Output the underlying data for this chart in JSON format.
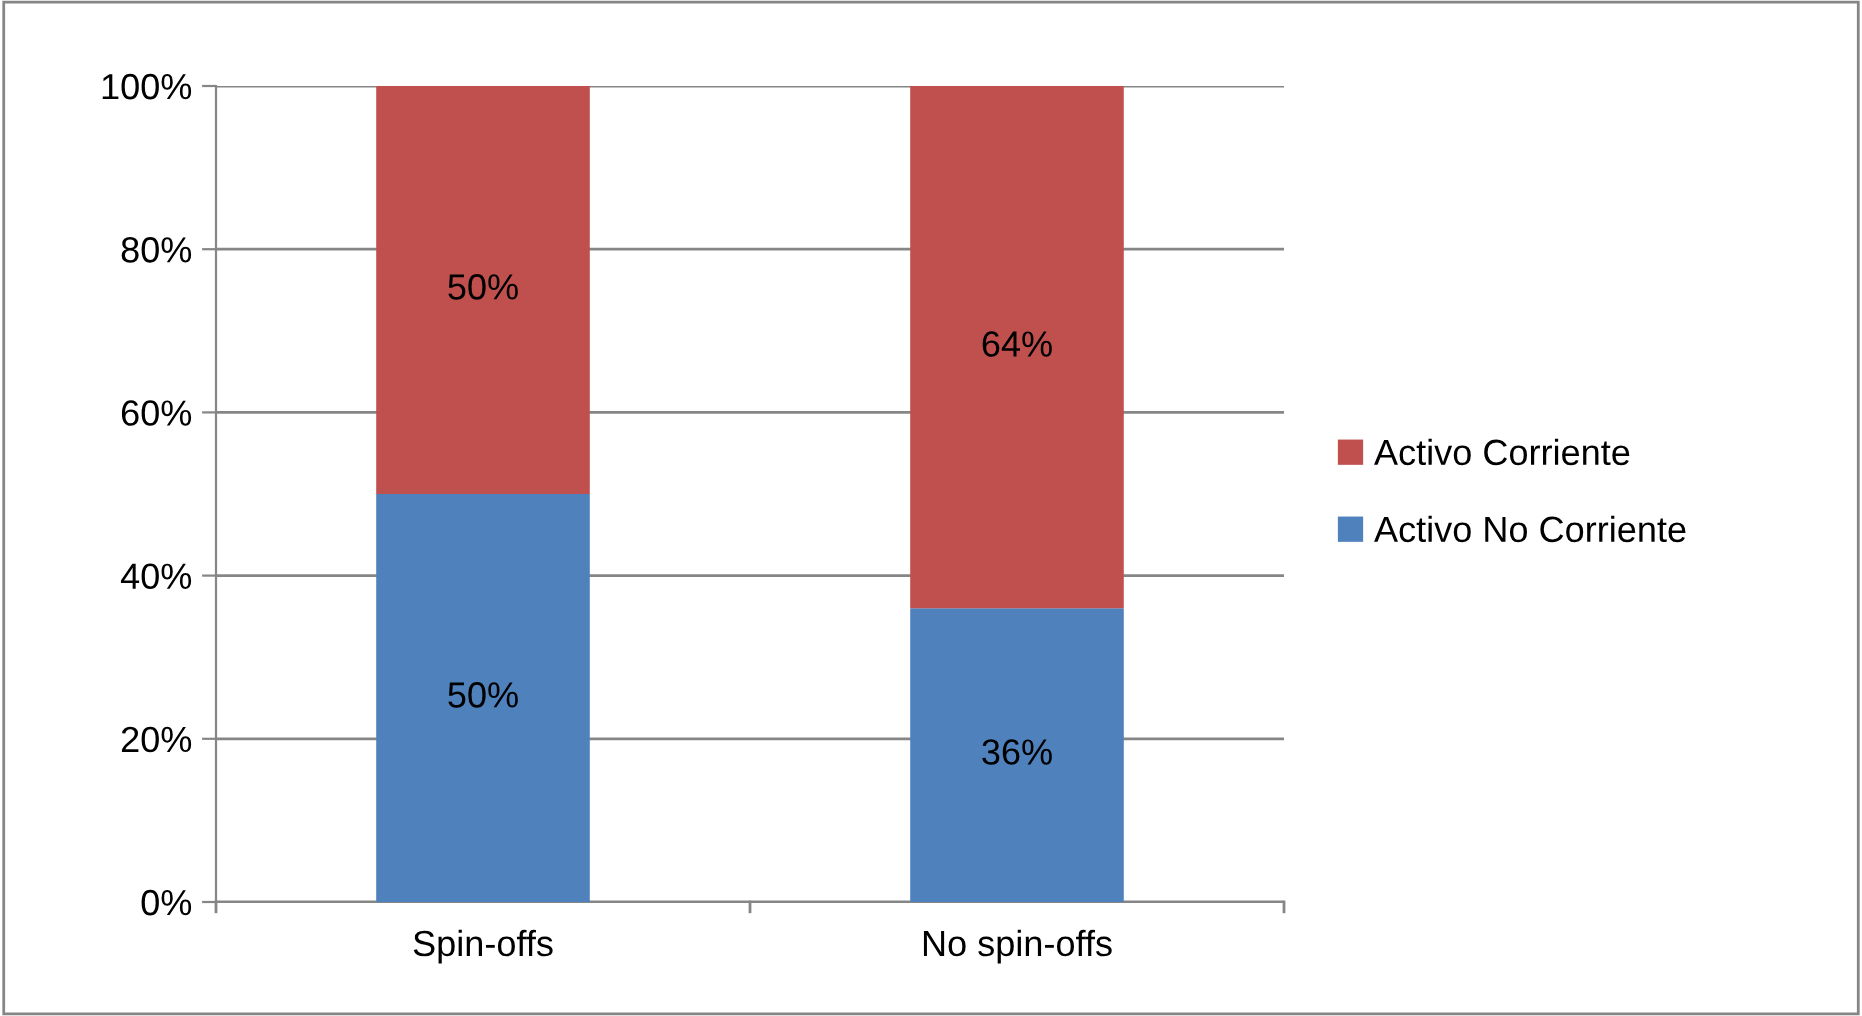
{
  "chart_data": {
    "type": "bar",
    "stacked": true,
    "categories": [
      "Spin-offs",
      "No spin-offs"
    ],
    "series": [
      {
        "name": "Activo No Corriente",
        "color": "#4f81bd",
        "values": [
          50,
          36
        ],
        "value_labels": [
          "50%",
          "36%"
        ]
      },
      {
        "name": "Activo Corriente",
        "color": "#c0504d",
        "values": [
          50,
          64
        ],
        "value_labels": [
          "50%",
          "64%"
        ]
      }
    ],
    "ylim": [
      0,
      100
    ],
    "yticks": [
      {
        "value": 0,
        "label": "0%"
      },
      {
        "value": 20,
        "label": "20%"
      },
      {
        "value": 40,
        "label": "40%"
      },
      {
        "value": 60,
        "label": "60%"
      },
      {
        "value": 80,
        "label": "80%"
      },
      {
        "value": 100,
        "label": "100%"
      }
    ],
    "grid": "y",
    "legend": "right"
  }
}
